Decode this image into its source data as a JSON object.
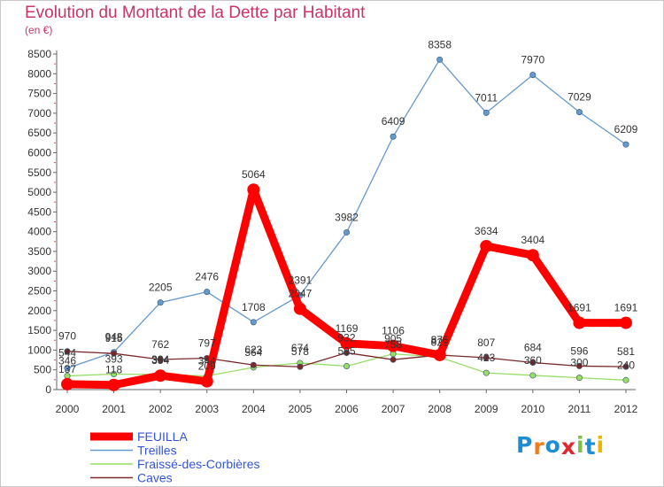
{
  "title": "Evolution du Montant de la Dette par Habitant",
  "subtitle": "(en €)",
  "logo_text": "Proxiti",
  "logo_colors": [
    "#1a8fd6",
    "#f07d1a",
    "#1a8fd6",
    "#e0262e",
    "#7cc242",
    "#1a8fd6",
    "#f0b400"
  ],
  "chart_data": {
    "type": "line",
    "title": "Evolution du Montant de la Dette par Habitant",
    "ylabel": "(en €)",
    "x": [
      "2000",
      "2001",
      "2002",
      "2003",
      "2004",
      "2005",
      "2006",
      "2007",
      "2008",
      "2009",
      "2010",
      "2011",
      "2012"
    ],
    "ylim": [
      0,
      8500
    ],
    "yticks": [
      0,
      500,
      1000,
      1500,
      2000,
      2500,
      3000,
      3500,
      4000,
      4500,
      5000,
      5500,
      6000,
      6500,
      7000,
      7500,
      8000,
      8500
    ],
    "grid": false,
    "legend_position": "bottom-left",
    "series": [
      {
        "name": "FEUILLA",
        "color": "#ff0000",
        "emphasis": true,
        "values": [
          137,
          118,
          354,
          209,
          5064,
          2047,
          1169,
          1106,
          876,
          3634,
          3404,
          1691,
          1691
        ],
        "labels": [
          "137",
          "118",
          "354",
          "209",
          "5064",
          "2047",
          "1169",
          "1106",
          "876",
          "3634",
          "3404",
          "1691",
          "1691"
        ]
      },
      {
        "name": "Treilles",
        "color": "#6699cc",
        "values": [
          544,
          948,
          2205,
          2476,
          1708,
          2391,
          3982,
          6409,
          8358,
          7011,
          7970,
          7029,
          6209
        ],
        "labels": [
          "544",
          "948",
          "2205",
          "2476",
          "1708",
          "2391",
          "3982",
          "6409",
          "8358",
          "7011",
          "7970",
          "7029",
          "6209"
        ]
      },
      {
        "name": "Fraissé-des-Corbières",
        "color": "#99dd66",
        "values": [
          346,
          393,
          384,
          344,
          564,
          674,
          595,
          905,
          821,
          423,
          360,
          300,
          240
        ],
        "labels": [
          "346",
          "393",
          "384",
          "344",
          "564",
          "674",
          "595",
          "905",
          "821",
          "423",
          "360",
          "300",
          "240"
        ]
      },
      {
        "name": "Caves",
        "color": "#7a2a2a",
        "values": [
          970,
          915,
          762,
          797,
          623,
          578,
          932,
          758,
          876,
          807,
          684,
          596,
          581
        ],
        "labels": [
          "970",
          "915",
          "762",
          "797",
          "623",
          "578",
          "932",
          "758",
          "876",
          "807",
          "684",
          "596",
          "581"
        ]
      }
    ]
  }
}
